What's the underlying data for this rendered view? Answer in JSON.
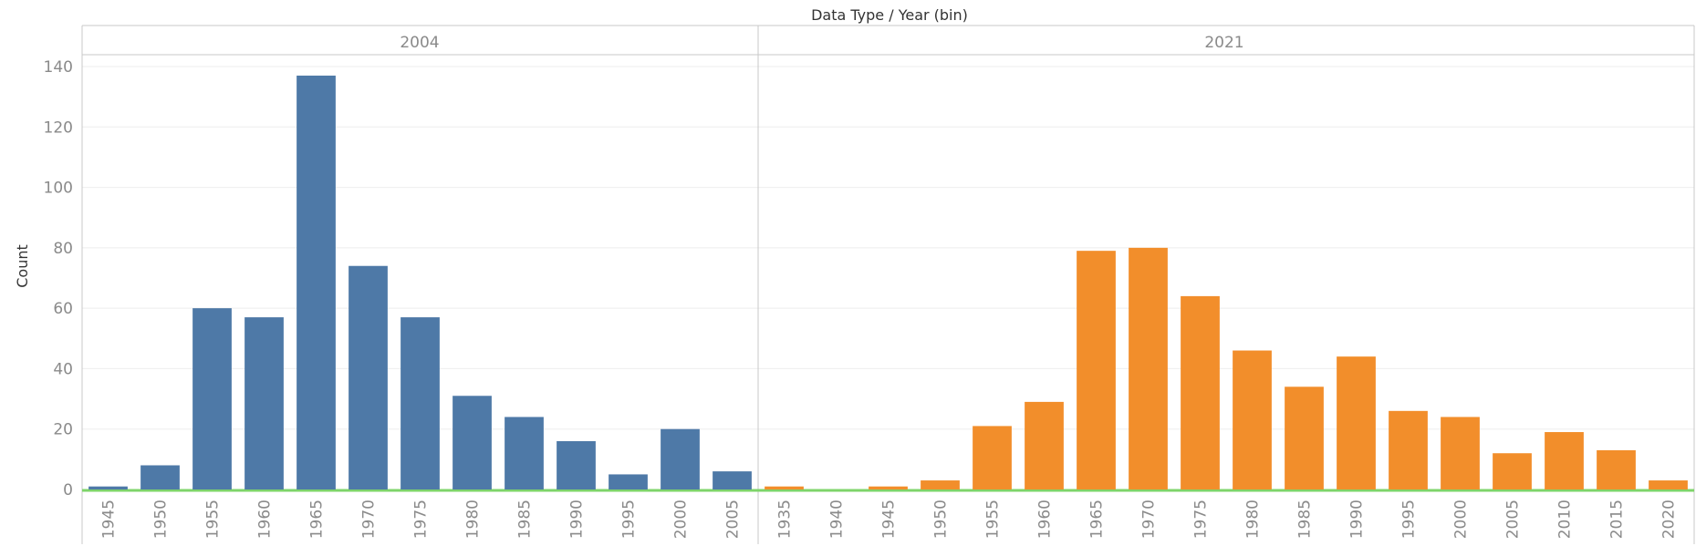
{
  "colors": {
    "series_2004": "#4e79a7",
    "series_2021": "#f28e2b",
    "axis_baseline": "#7ed46a",
    "gridline": "#eeeeee",
    "divider": "#c8c8c8"
  },
  "chart_data": {
    "type": "bar",
    "title": "Data Type / Year (bin)",
    "ylabel": "Count",
    "ylim": [
      0,
      150
    ],
    "yticks": [
      0,
      20,
      40,
      60,
      80,
      100,
      120,
      140
    ],
    "grid": true,
    "panels": [
      {
        "label": "2004",
        "color": "#4e79a7",
        "categories": [
          "1945",
          "1950",
          "1955",
          "1960",
          "1965",
          "1970",
          "1975",
          "1980",
          "1985",
          "1990",
          "1995",
          "2000",
          "2005"
        ],
        "values": [
          1,
          8,
          60,
          57,
          137,
          74,
          57,
          31,
          24,
          16,
          5,
          20,
          6
        ]
      },
      {
        "label": "2021",
        "color": "#f28e2b",
        "categories": [
          "1935",
          "1940",
          "1945",
          "1950",
          "1955",
          "1960",
          "1965",
          "1970",
          "1975",
          "1980",
          "1985",
          "1990",
          "1995",
          "2000",
          "2005",
          "2010",
          "2015",
          "2020"
        ],
        "values": [
          1,
          0,
          1,
          3,
          21,
          29,
          79,
          80,
          64,
          46,
          34,
          44,
          26,
          24,
          12,
          19,
          13,
          3
        ]
      }
    ]
  }
}
